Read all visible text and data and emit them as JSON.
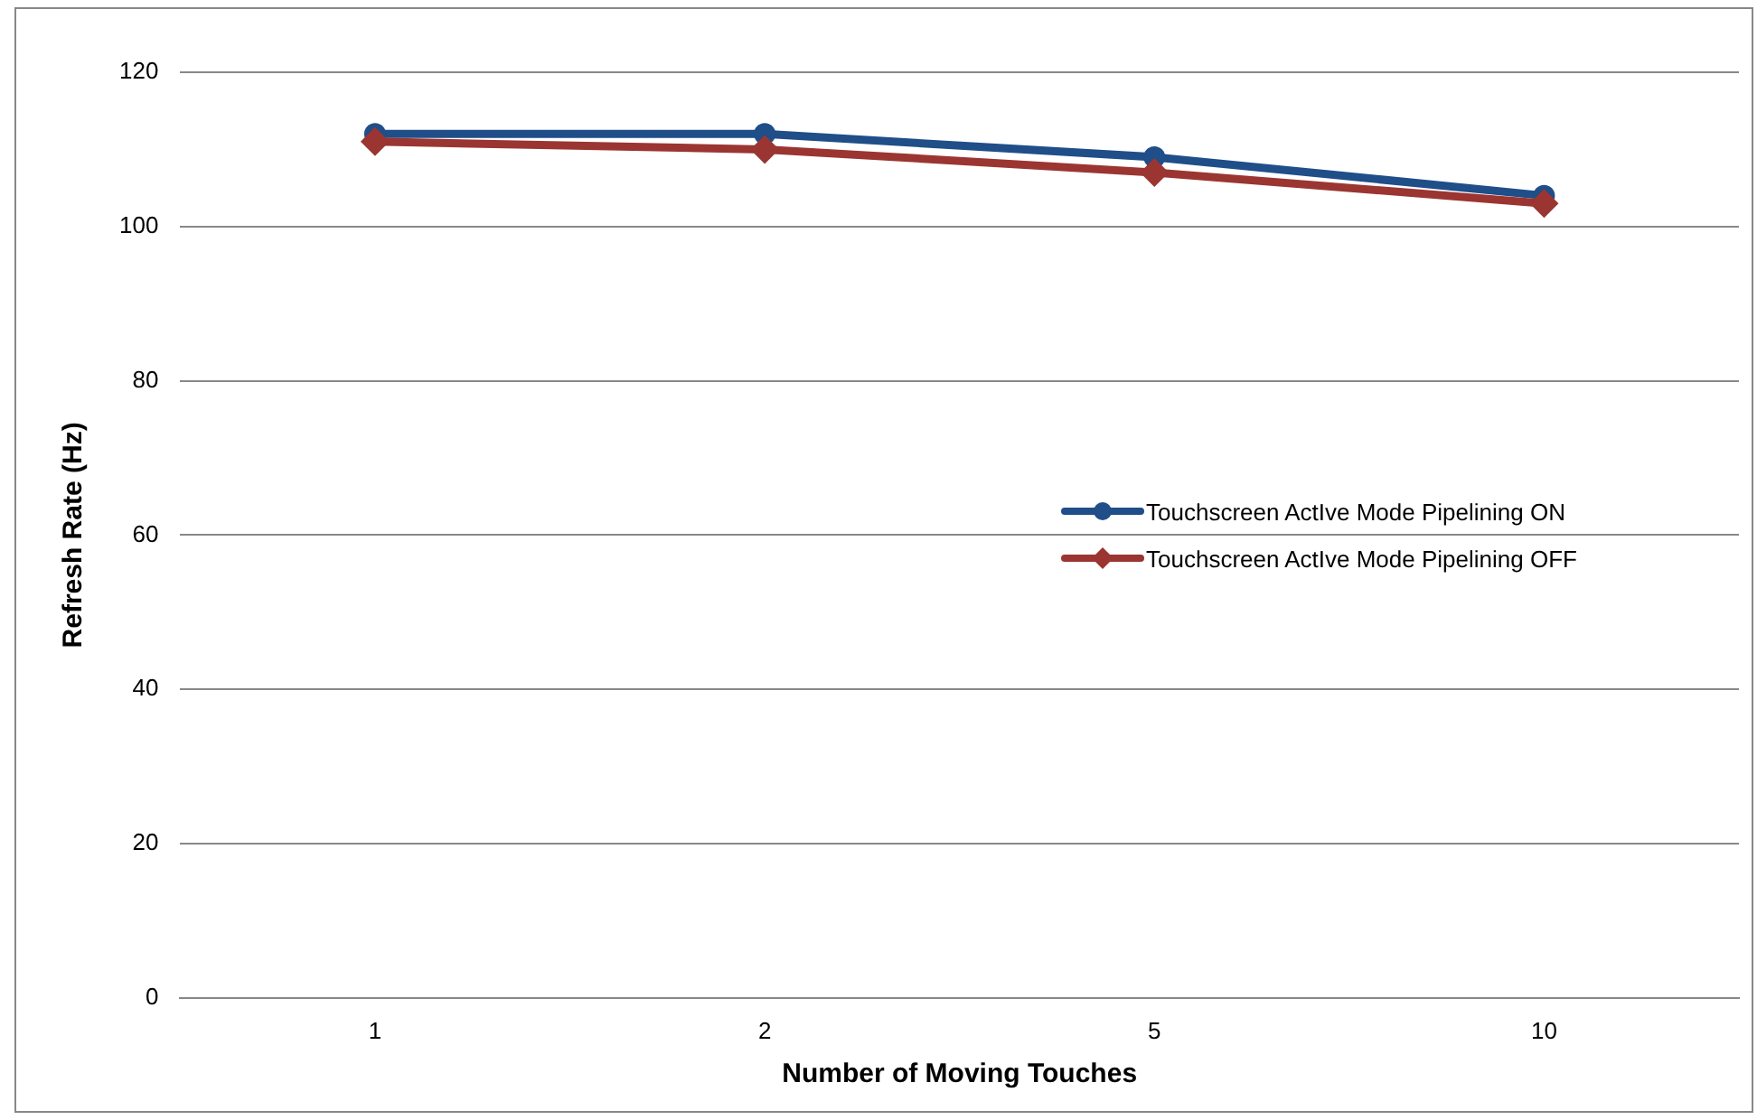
{
  "chart_data": {
    "type": "line",
    "xlabel": "Number of Moving Touches",
    "ylabel": "Refresh Rate (Hz)",
    "categories": [
      "1",
      "2",
      "5",
      "10"
    ],
    "series": [
      {
        "name": "Touchscreen ActIve Mode Pipelining ON",
        "color": "#1f4e89",
        "values": [
          112,
          112,
          109,
          104
        ],
        "marker": "circle"
      },
      {
        "name": "Touchscreen ActIve Mode Pipelining OFF",
        "color": "#9b3532",
        "values": [
          111,
          110,
          107,
          103
        ],
        "marker": "diamond"
      }
    ],
    "ylim": [
      0,
      120
    ],
    "yticks": [
      0,
      20,
      40,
      60,
      80,
      100,
      120
    ],
    "grid": "y",
    "legend": "right",
    "line_style": "solid"
  }
}
